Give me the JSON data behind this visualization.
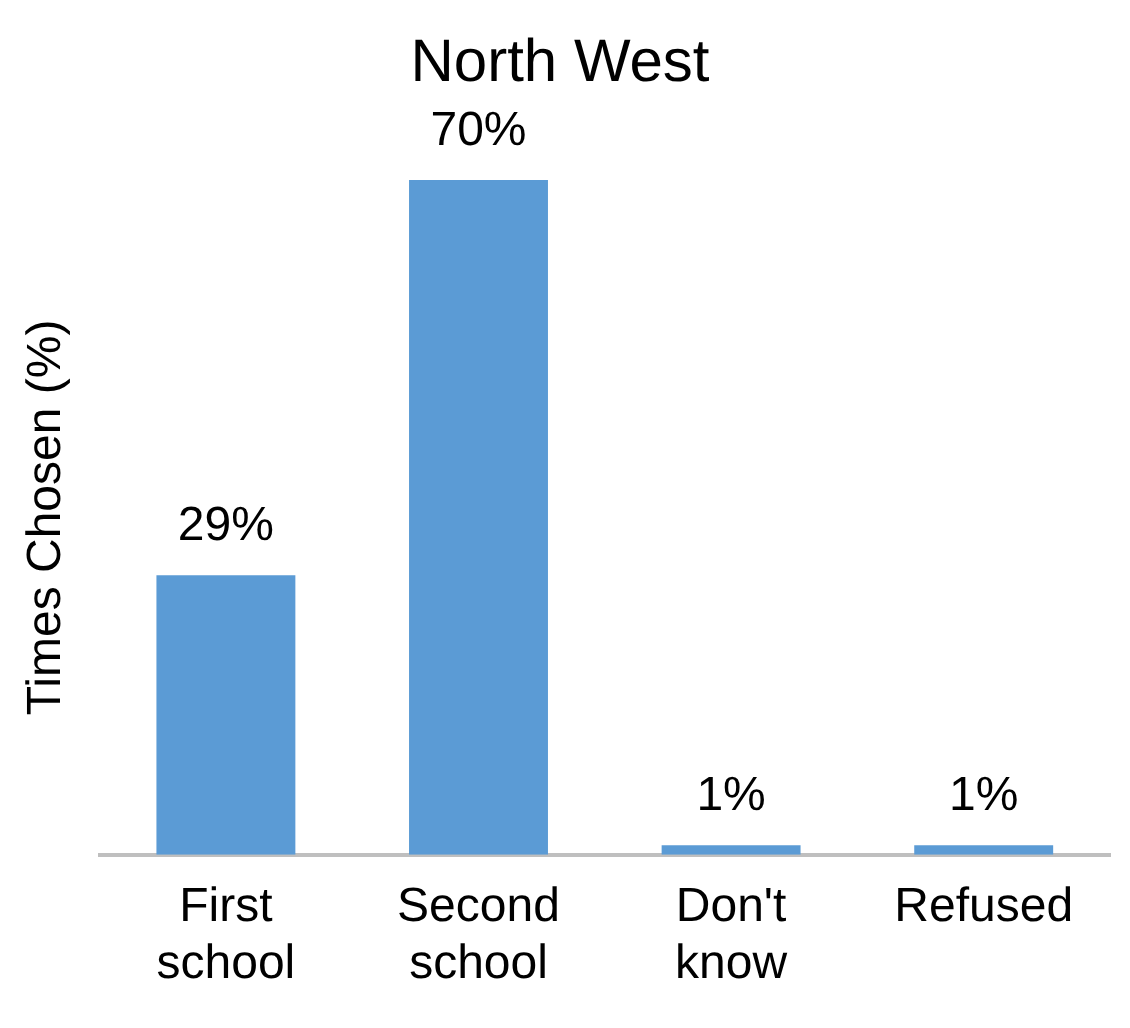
{
  "chart_data": {
    "type": "bar",
    "title": "North West",
    "ylabel": "Times Chosen (%)",
    "categories": [
      "First school",
      "Second school",
      "Don't know",
      "Refused"
    ],
    "values": [
      29,
      70,
      1,
      1
    ],
    "value_labels": [
      "29%",
      "70%",
      "1%",
      "1%"
    ],
    "color": "#5b9bd5",
    "grid": false,
    "legend": false
  }
}
